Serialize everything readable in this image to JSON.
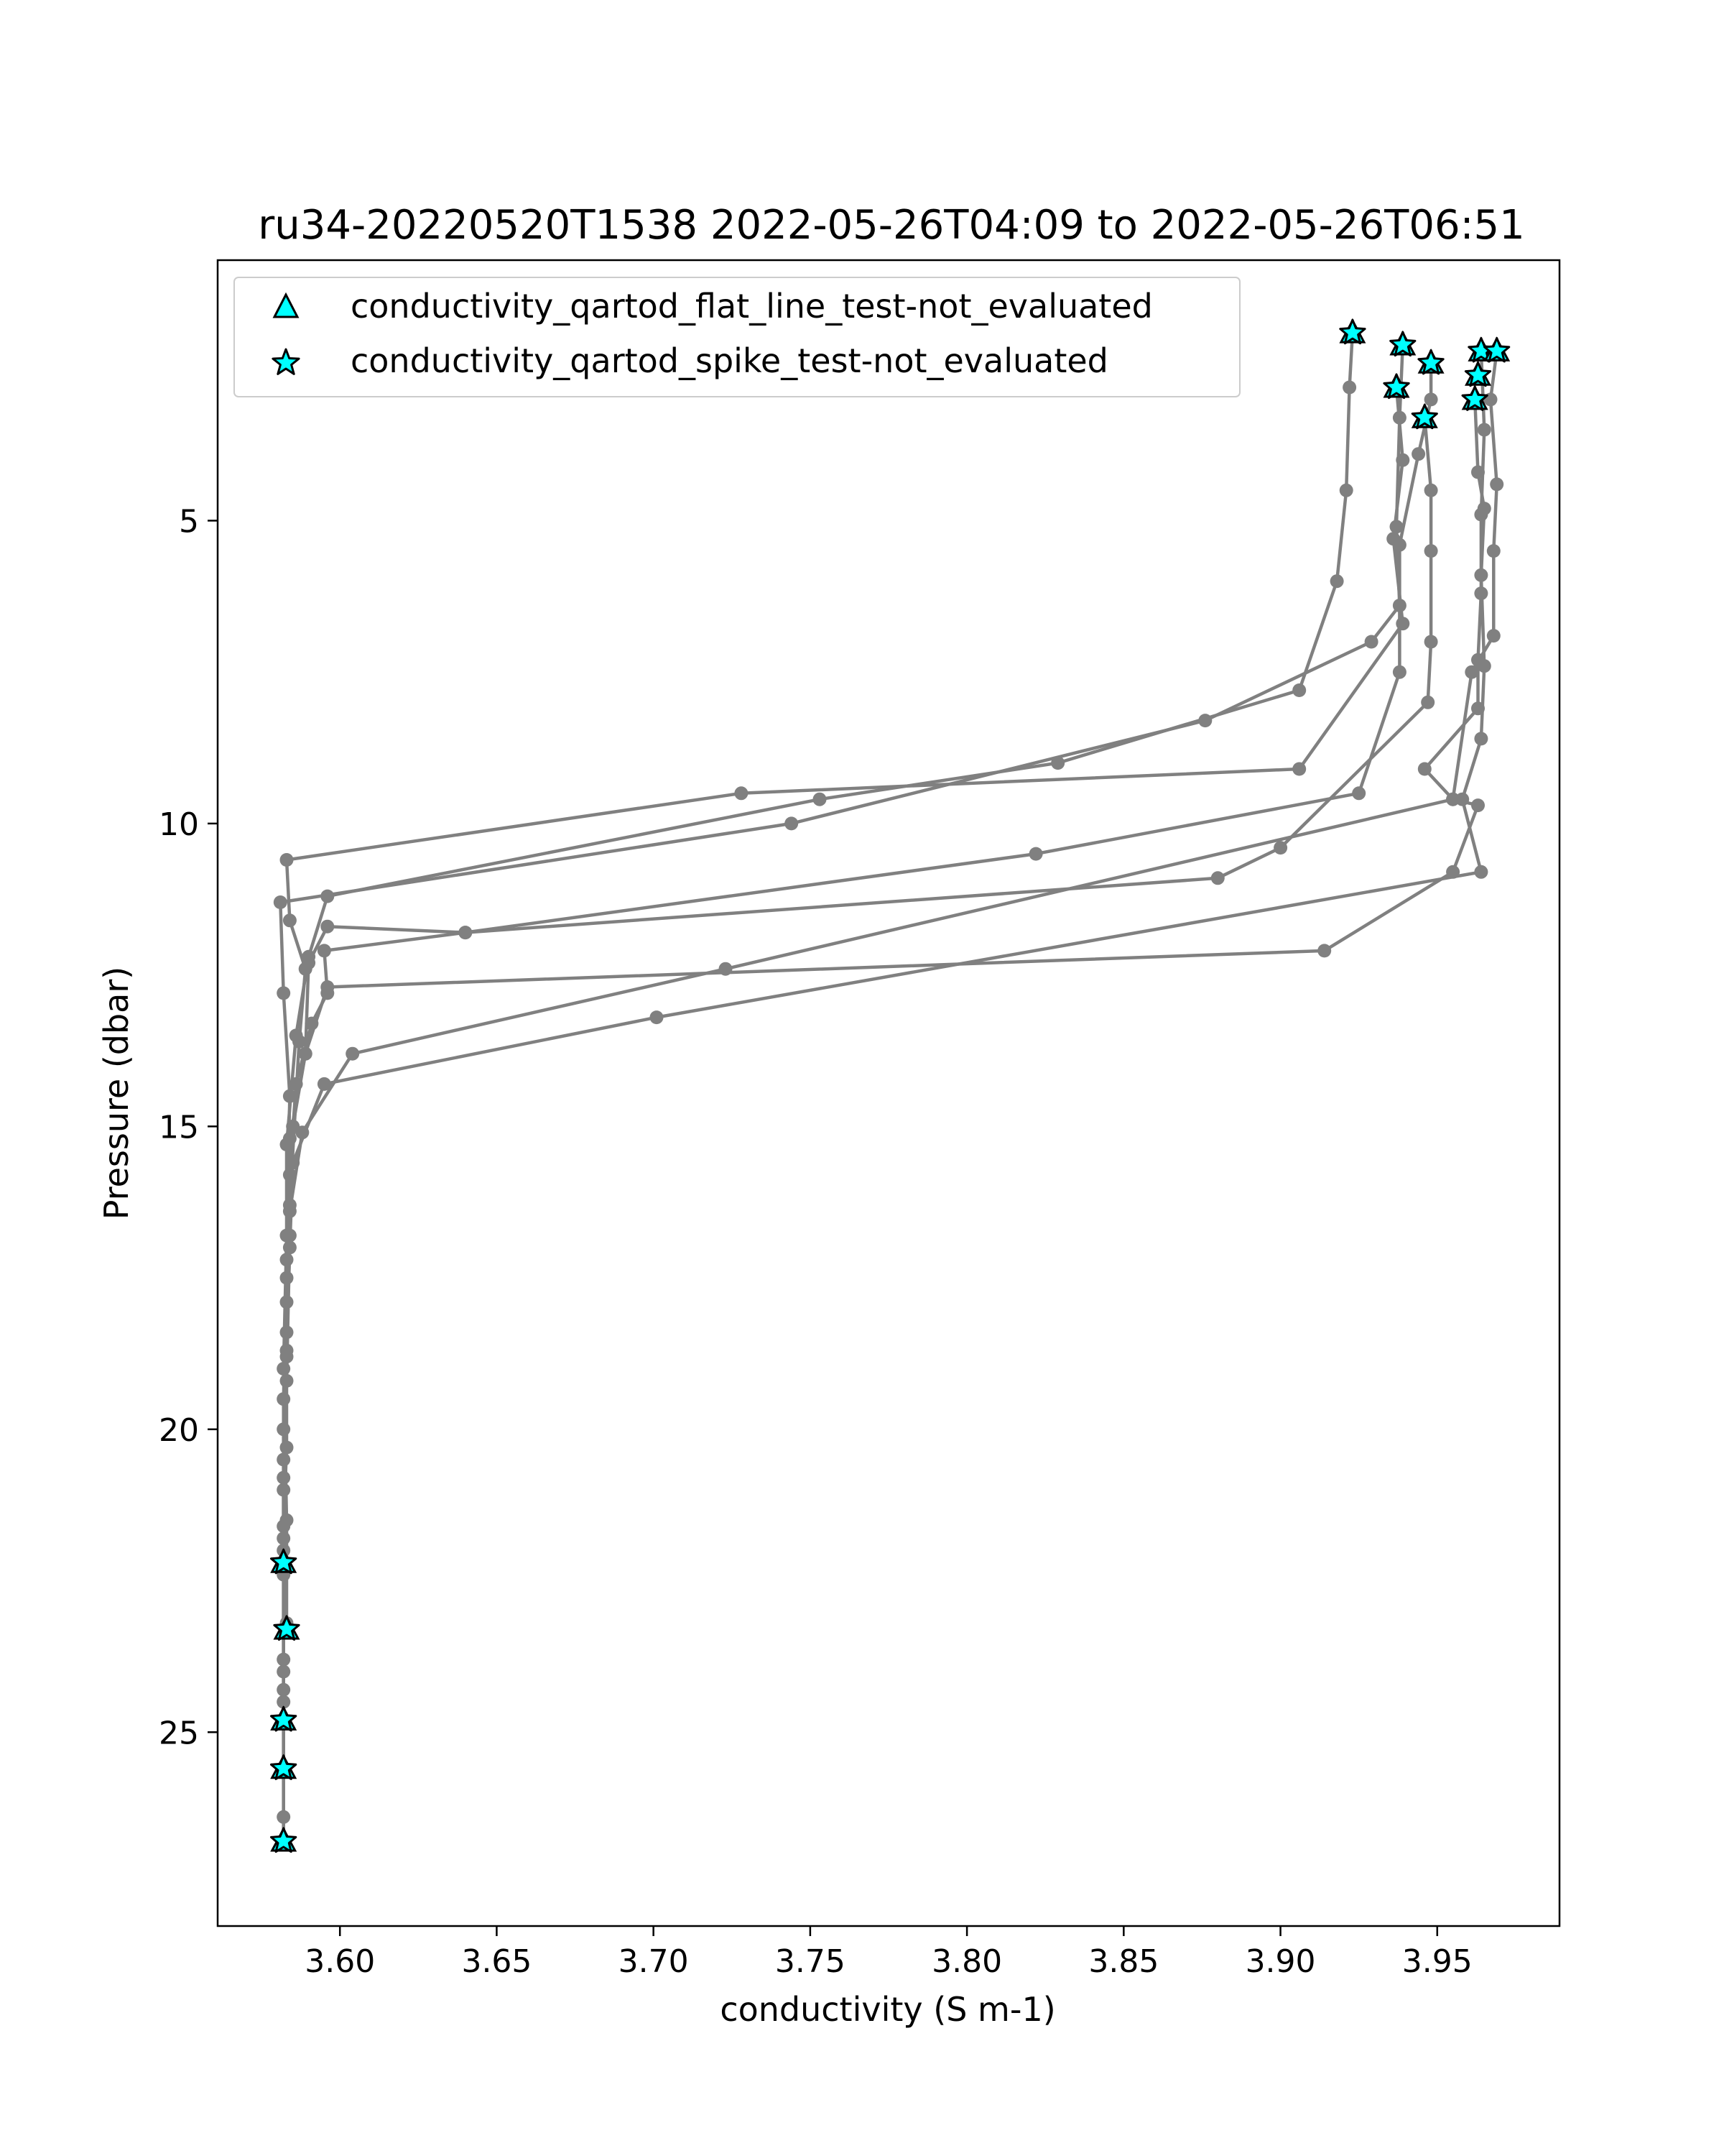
{
  "chart_data": {
    "type": "line",
    "title": "ru34-20220520T1538 2022-05-26T04:09 to 2022-05-26T06:51",
    "xlabel": "conductivity (S m-1)",
    "ylabel": "Pressure (dbar)",
    "xlim": [
      3.561,
      3.989
    ],
    "ylim": [
      28.2,
      0.7
    ],
    "y_inverted": true,
    "grid": false,
    "legend_position": "top-left",
    "xticks": [
      3.6,
      3.65,
      3.7,
      3.75,
      3.8,
      3.85,
      3.9,
      3.95
    ],
    "xtick_labels": [
      "3.60",
      "3.65",
      "3.70",
      "3.75",
      "3.80",
      "3.85",
      "3.90",
      "3.95"
    ],
    "yticks": [
      5,
      10,
      15,
      20,
      25
    ],
    "ytick_labels": [
      "5",
      "10",
      "15",
      "20",
      "25"
    ],
    "line_color": "#808080",
    "marker_color": "#808080",
    "legend": [
      {
        "label": "conductivity_qartod_flat_line_test-not_evaluated",
        "marker": "triangle",
        "color": "#00ffff"
      },
      {
        "label": "conductivity_qartod_spike_test-not_evaluated",
        "marker": "star",
        "color": "#00ffff"
      }
    ],
    "series": [
      {
        "points": [
          [
            3.923,
            1.9
          ],
          [
            3.922,
            2.8
          ],
          [
            3.921,
            4.5
          ],
          [
            3.918,
            6.0
          ],
          [
            3.906,
            7.8
          ],
          [
            3.829,
            9.0
          ],
          [
            3.753,
            9.6
          ],
          [
            3.596,
            11.2
          ],
          [
            3.59,
            12.2
          ],
          [
            3.586,
            13.5
          ],
          [
            3.583,
            15.3
          ],
          [
            3.583,
            17.5
          ],
          [
            3.582,
            20.0
          ],
          [
            3.582,
            22.2
          ]
        ]
      },
      {
        "points": [
          [
            3.939,
            2.1
          ],
          [
            3.938,
            3.3
          ],
          [
            3.937,
            5.1
          ],
          [
            3.938,
            6.4
          ],
          [
            3.929,
            7.0
          ],
          [
            3.876,
            8.3
          ],
          [
            3.744,
            10.0
          ],
          [
            3.581,
            11.3
          ],
          [
            3.582,
            12.8
          ],
          [
            3.584,
            14.5
          ],
          [
            3.583,
            16.8
          ],
          [
            3.582,
            19.0
          ],
          [
            3.583,
            21.5
          ],
          [
            3.583,
            23.3
          ]
        ]
      },
      {
        "points": [
          [
            3.937,
            2.8
          ],
          [
            3.939,
            4.0
          ],
          [
            3.936,
            5.3
          ],
          [
            3.939,
            6.7
          ],
          [
            3.906,
            9.1
          ],
          [
            3.728,
            9.5
          ],
          [
            3.583,
            10.6
          ],
          [
            3.584,
            11.6
          ],
          [
            3.589,
            12.4
          ],
          [
            3.587,
            13.6
          ],
          [
            3.584,
            16.3
          ],
          [
            3.583,
            18.4
          ],
          [
            3.582,
            21.0
          ],
          [
            3.582,
            23.8
          ],
          [
            3.582,
            24.8
          ]
        ]
      },
      {
        "points": [
          [
            3.948,
            2.4
          ],
          [
            3.948,
            3.0
          ],
          [
            3.944,
            3.9
          ],
          [
            3.938,
            5.4
          ],
          [
            3.938,
            7.5
          ],
          [
            3.925,
            9.5
          ],
          [
            3.822,
            10.5
          ],
          [
            3.64,
            11.8
          ],
          [
            3.596,
            11.7
          ],
          [
            3.59,
            12.3
          ],
          [
            3.589,
            13.8
          ],
          [
            3.585,
            15.0
          ],
          [
            3.583,
            17.2
          ],
          [
            3.582,
            19.5
          ],
          [
            3.582,
            22.0
          ],
          [
            3.582,
            24.0
          ],
          [
            3.582,
            25.6
          ]
        ]
      },
      {
        "points": [
          [
            3.946,
            3.3
          ],
          [
            3.948,
            4.5
          ],
          [
            3.948,
            5.5
          ],
          [
            3.948,
            7.0
          ],
          [
            3.947,
            8.0
          ],
          [
            3.9,
            10.4
          ],
          [
            3.88,
            10.9
          ],
          [
            3.64,
            11.8
          ],
          [
            3.595,
            12.1
          ],
          [
            3.596,
            12.8
          ],
          [
            3.591,
            13.3
          ],
          [
            3.586,
            14.3
          ],
          [
            3.584,
            15.8
          ],
          [
            3.584,
            16.8
          ],
          [
            3.583,
            19.2
          ],
          [
            3.582,
            21.8
          ],
          [
            3.582,
            24.5
          ],
          [
            3.582,
            26.8
          ]
        ]
      },
      {
        "points": [
          [
            3.964,
            2.2
          ],
          [
            3.965,
            3.5
          ],
          [
            3.964,
            4.9
          ],
          [
            3.964,
            6.2
          ],
          [
            3.963,
            7.3
          ],
          [
            3.963,
            8.1
          ],
          [
            3.946,
            9.1
          ],
          [
            3.955,
            9.6
          ],
          [
            3.723,
            12.4
          ],
          [
            3.604,
            13.8
          ],
          [
            3.588,
            15.1
          ],
          [
            3.584,
            16.4
          ],
          [
            3.583,
            18.8
          ],
          [
            3.583,
            20.3
          ],
          [
            3.582,
            21.6
          ]
        ]
      },
      {
        "points": [
          [
            3.962,
            3.0
          ],
          [
            3.963,
            4.2
          ],
          [
            3.965,
            4.8
          ],
          [
            3.964,
            5.9
          ],
          [
            3.965,
            7.4
          ],
          [
            3.964,
            8.6
          ],
          [
            3.958,
            9.6
          ],
          [
            3.964,
            10.8
          ],
          [
            3.701,
            13.2
          ],
          [
            3.595,
            14.3
          ],
          [
            3.585,
            15.6
          ],
          [
            3.584,
            17.0
          ],
          [
            3.583,
            18.7
          ],
          [
            3.582,
            20.8
          ],
          [
            3.582,
            22.4
          ],
          [
            3.583,
            23.2
          ]
        ]
      },
      {
        "points": [
          [
            3.969,
            2.2
          ],
          [
            3.967,
            3.0
          ],
          [
            3.969,
            4.4
          ],
          [
            3.968,
            5.5
          ],
          [
            3.968,
            6.9
          ],
          [
            3.961,
            7.5
          ],
          [
            3.955,
            9.6
          ],
          [
            3.963,
            9.7
          ],
          [
            3.955,
            10.8
          ],
          [
            3.914,
            12.1
          ],
          [
            3.596,
            12.7
          ],
          [
            3.589,
            13.8
          ],
          [
            3.584,
            15.2
          ],
          [
            3.583,
            17.9
          ],
          [
            3.582,
            20.5
          ],
          [
            3.582,
            24.3
          ],
          [
            3.582,
            26.4
          ],
          [
            3.582,
            26.8
          ]
        ]
      }
    ],
    "flagged_points": [
      [
        3.923,
        1.9
      ],
      [
        3.939,
        2.1
      ],
      [
        3.964,
        2.2
      ],
      [
        3.969,
        2.2
      ],
      [
        3.948,
        2.4
      ],
      [
        3.963,
        2.6
      ],
      [
        3.937,
        2.8
      ],
      [
        3.962,
        3.0
      ],
      [
        3.946,
        3.3
      ],
      [
        3.582,
        22.2
      ],
      [
        3.583,
        23.3
      ],
      [
        3.582,
        24.8
      ],
      [
        3.582,
        25.6
      ],
      [
        3.582,
        26.8
      ]
    ]
  }
}
